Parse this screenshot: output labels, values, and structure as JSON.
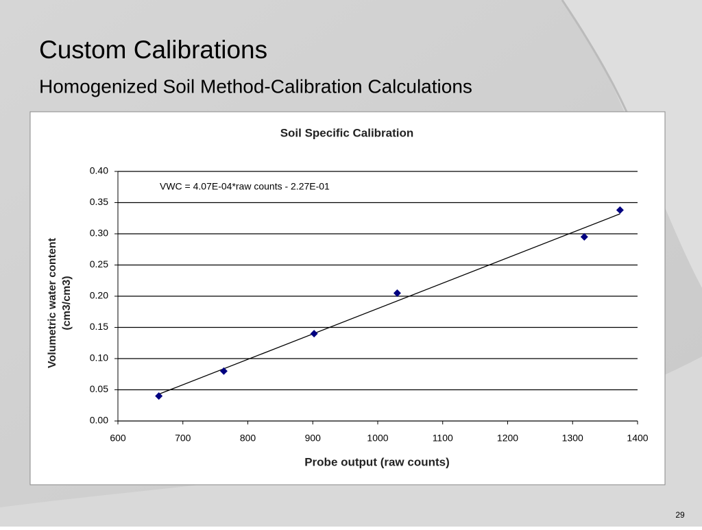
{
  "slide": {
    "title": "Custom Calibrations",
    "subtitle": "Homogenized Soil Method-Calibration Calculations",
    "page_number": "29"
  },
  "chart_data": {
    "type": "scatter",
    "title": "Soil Specific Calibration",
    "xlabel": "Probe output (raw counts)",
    "ylabel": [
      "Volumetric water content",
      "(cm3/cm3)"
    ],
    "annotation": "VWC = 4.07E-04*raw counts - 2.27E-01",
    "x": [
      663,
      763,
      902,
      1030,
      1318,
      1373
    ],
    "series": [
      {
        "color": "#000080",
        "values": [
          0.04,
          0.08,
          0.14,
          0.205,
          0.295,
          0.338
        ]
      }
    ],
    "trendline": {
      "color": "#000000",
      "x": [
        663,
        1373
      ],
      "values": [
        0.043,
        0.332
      ]
    },
    "xlim": [
      600,
      1400
    ],
    "xticks": [
      600,
      700,
      800,
      900,
      1000,
      1100,
      1200,
      1300,
      1400
    ],
    "ylim": [
      0,
      0.4
    ],
    "yticks": [
      {
        "value": 0,
        "label": "0.00"
      },
      {
        "value": 0.05,
        "label": "0.05"
      },
      {
        "value": 0.1,
        "label": "0.10"
      },
      {
        "value": 0.15,
        "label": "0.15"
      },
      {
        "value": 0.2,
        "label": "0.20"
      },
      {
        "value": 0.25,
        "label": "0.25"
      },
      {
        "value": 0.3,
        "label": "0.30"
      },
      {
        "value": 0.35,
        "label": "0.35"
      },
      {
        "value": 0.4,
        "label": "0.40"
      }
    ],
    "grid": true
  }
}
